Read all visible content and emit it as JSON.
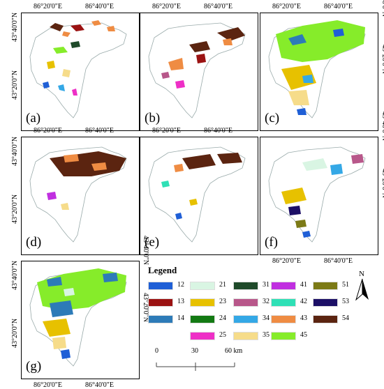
{
  "panels": [
    {
      "letter": "(a)",
      "key": "a"
    },
    {
      "letter": "(b)",
      "key": "b"
    },
    {
      "letter": "(c)",
      "key": "c"
    },
    {
      "letter": "(d)",
      "key": "d"
    },
    {
      "letter": "(e)",
      "key": "e"
    },
    {
      "letter": "(f)",
      "key": "f"
    },
    {
      "letter": "(g)",
      "key": "g"
    }
  ],
  "ticks": {
    "lon1": "86°20'0\"E",
    "lon2": "86°40'0\"E",
    "lat1": "43°40'0\"N",
    "lat2": "43°20'0\"N"
  },
  "legend": {
    "title": "Legend",
    "items": [
      {
        "code": "12",
        "color": "#1f5fd6"
      },
      {
        "code": "21",
        "color": "#d9f5e3"
      },
      {
        "code": "31",
        "color": "#1f4a2a"
      },
      {
        "code": "41",
        "color": "#c02fe0"
      },
      {
        "code": "51",
        "color": "#7c7a16"
      },
      {
        "code": "13",
        "color": "#9b1212"
      },
      {
        "code": "23",
        "color": "#e7c100"
      },
      {
        "code": "32",
        "color": "#b8578a"
      },
      {
        "code": "42",
        "color": "#2fe0b6"
      },
      {
        "code": "53",
        "color": "#1c0f66"
      },
      {
        "code": "14",
        "color": "#2d7bb8"
      },
      {
        "code": "24",
        "color": "#137a13"
      },
      {
        "code": "34",
        "color": "#34a8e6"
      },
      {
        "code": "43",
        "color": "#ef8c43"
      },
      {
        "code": "54",
        "color": "#5b2410"
      },
      {
        "code": "25",
        "color": "#ee2fc6"
      },
      {
        "code": "35",
        "color": "#f6dc8a"
      },
      {
        "code": "45",
        "color": "#86ec2a"
      }
    ]
  },
  "scalebar": {
    "l0": "0",
    "l1": "30",
    "l2": "60 km"
  },
  "north_label": "N"
}
